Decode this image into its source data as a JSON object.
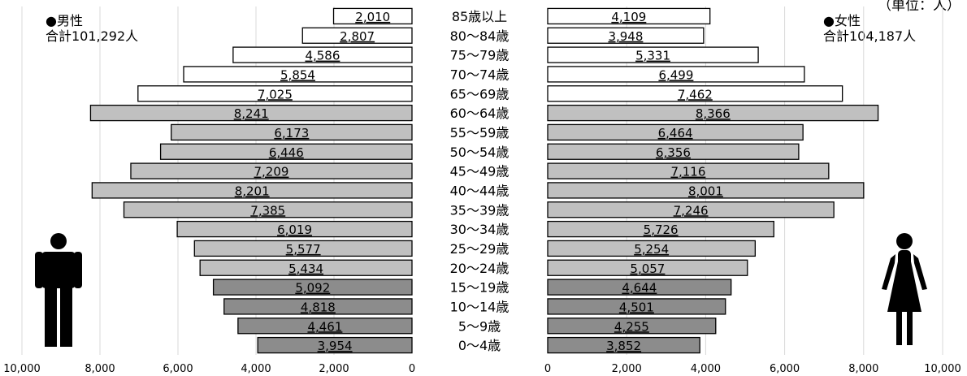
{
  "chart_data": {
    "type": "bar",
    "unit_note": "（単位：人）",
    "categories": [
      "85歳以上",
      "80～84歳",
      "75～79歳",
      "70～74歳",
      "65～69歳",
      "60～64歳",
      "55～59歳",
      "50～54歳",
      "45～49歳",
      "40～44歳",
      "35～39歳",
      "30～34歳",
      "25～29歳",
      "20～24歳",
      "15～19歳",
      "10～14歳",
      "5～9歳",
      "0～4歳"
    ],
    "series": [
      {
        "name": "●男性",
        "total_label": "合計101,292人",
        "values": [
          2010,
          2807,
          4586,
          5854,
          7025,
          8241,
          6173,
          6446,
          7209,
          8201,
          7385,
          6019,
          5577,
          5434,
          5092,
          4818,
          4461,
          3954
        ]
      },
      {
        "name": "●女性",
        "total_label": "合計104,187人",
        "values": [
          4109,
          3948,
          5331,
          6499,
          7462,
          8366,
          6464,
          6356,
          7116,
          8001,
          7246,
          5726,
          5254,
          5057,
          4644,
          4501,
          4255,
          3852
        ]
      }
    ],
    "xlim": [
      0,
      10000
    ],
    "xticks": [
      0,
      2000,
      4000,
      6000,
      8000,
      10000
    ],
    "xtick_labels_male": [
      "0",
      "2,000",
      "4,000",
      "6,000",
      "8,000",
      "10,000"
    ],
    "xtick_labels_female": [
      "0",
      "2,000",
      "4,000",
      "6,000",
      "8,000",
      "10,000"
    ],
    "grid": true,
    "legend": "none",
    "bar_colors": {
      "age_65_plus": "#ffffff",
      "age_20_64": "#c0c0c0",
      "age_0_19": "#8c8c8c"
    },
    "icons": {
      "male": "man-icon",
      "female": "woman-icon"
    }
  }
}
